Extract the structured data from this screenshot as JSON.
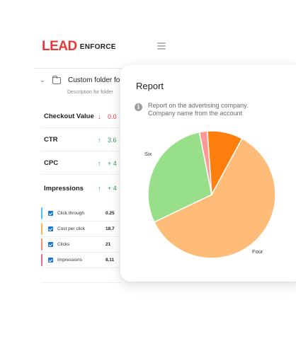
{
  "brand": {
    "mark": "LEAD",
    "text": "ENFORCE",
    "accent": "#e53935"
  },
  "folder": {
    "name": "Custom folder for",
    "description": "Description for folder"
  },
  "metrics": [
    {
      "name": "Checkout Value",
      "value": "0.0",
      "trend": "down"
    },
    {
      "name": "CTR",
      "value": "3.6",
      "trend": "up"
    },
    {
      "name": "CPC",
      "value": "+ 4",
      "trend": "up"
    },
    {
      "name": "Impressions",
      "value": "+ 4",
      "trend": "up"
    }
  ],
  "checklist": [
    {
      "label": "Click through",
      "value": "0.25",
      "color": "#4fc3f7"
    },
    {
      "label": "Cost per click",
      "value": "18.7",
      "color": "#ffb74d"
    },
    {
      "label": "Clicks",
      "value": "21",
      "color": "#ff8a65"
    },
    {
      "label": "Impressions",
      "value": "8.11",
      "color": "#f06292"
    }
  ],
  "report": {
    "title": "Report",
    "description": "Report on the advertising company. Company name from the account"
  },
  "chart_data": {
    "type": "pie",
    "slices": [
      {
        "label": "",
        "value": 9,
        "color": "#ff7f0e"
      },
      {
        "label": "Four",
        "value": 60,
        "color": "#ffbb78"
      },
      {
        "label": "Six",
        "value": 29,
        "color": "#98df8a"
      },
      {
        "label": "",
        "value": 2,
        "color": "#ff9896"
      }
    ]
  }
}
